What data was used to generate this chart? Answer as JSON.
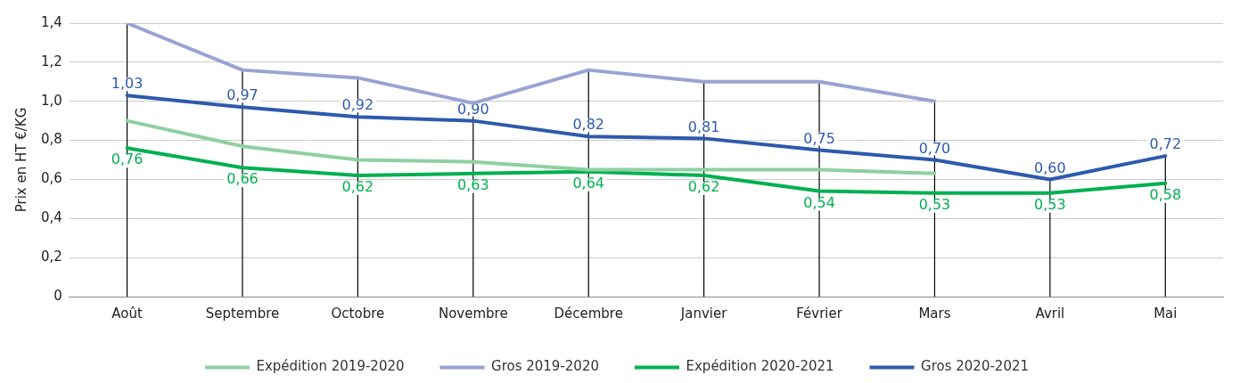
{
  "chart_data": {
    "type": "line",
    "ylabel": "Prix en HT €/KG",
    "categories": [
      "Août",
      "Septembre",
      "Octobre",
      "Novembre",
      "Décembre",
      "Janvier",
      "Février",
      "Mars",
      "Avril",
      "Mai"
    ],
    "series": [
      {
        "name": "Expédition 2019-2020",
        "color": "#8fd0a0",
        "values": [
          0.9,
          0.77,
          0.7,
          0.69,
          0.65,
          0.65,
          0.65,
          0.63,
          null,
          null
        ]
      },
      {
        "name": "Gros 2019-2020",
        "color": "#99a3d3",
        "values": [
          1.4,
          1.16,
          1.12,
          0.99,
          1.16,
          1.1,
          1.1,
          1.0,
          null,
          null
        ]
      },
      {
        "name": "Expédition 2020-2021",
        "color": "#00b050",
        "values": [
          0.76,
          0.66,
          0.62,
          0.63,
          0.64,
          0.62,
          0.54,
          0.53,
          0.53,
          0.58
        ],
        "value_labels": [
          "0,76",
          "0,66",
          "0,62",
          "0,63",
          "0,64",
          "0,62",
          "0,54",
          "0,53",
          "0,53",
          "0,58"
        ]
      },
      {
        "name": "Gros 2020-2021",
        "color": "#2e5aac",
        "values": [
          1.03,
          0.97,
          0.92,
          0.9,
          0.82,
          0.81,
          0.75,
          0.7,
          0.6,
          0.72
        ],
        "value_labels": [
          "1,03",
          "0,97",
          "0,92",
          "0,90",
          "0,82",
          "0,81",
          "0,75",
          "0,70",
          "0,60",
          "0,72"
        ]
      }
    ],
    "ylim": [
      0,
      1.4
    ],
    "yticks": [
      {
        "value": 0,
        "label": "0"
      },
      {
        "value": 0.2,
        "label": "0,2"
      },
      {
        "value": 0.4,
        "label": "0,4"
      },
      {
        "value": 0.6,
        "label": "0,6"
      },
      {
        "value": 0.8,
        "label": "0,8"
      },
      {
        "value": 1.0,
        "label": "1,0"
      },
      {
        "value": 1.2,
        "label": "1,2"
      },
      {
        "value": 1.4,
        "label": "1,4"
      }
    ],
    "grid": true,
    "legend": "bottom",
    "marker": "none",
    "line_style": "solid"
  }
}
